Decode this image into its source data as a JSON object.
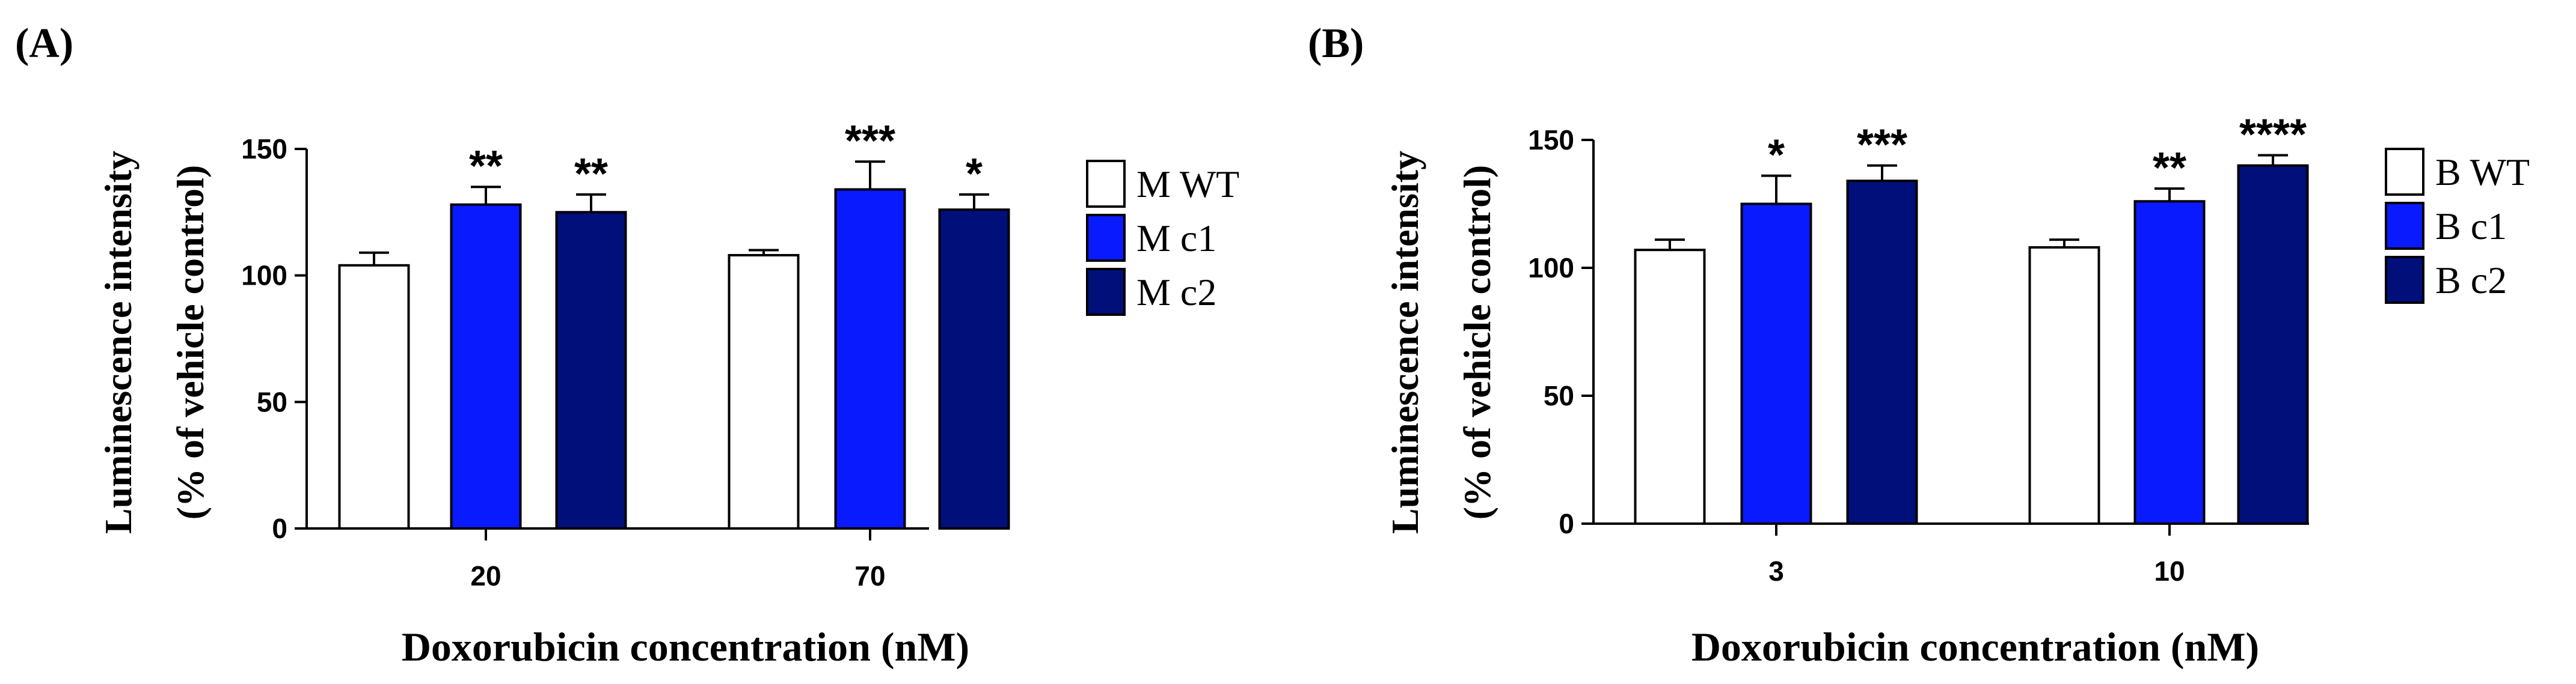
{
  "chart_data": [
    {
      "panel_label": "(A)",
      "type": "bar",
      "categories": [
        "20",
        "70"
      ],
      "series": [
        {
          "name": "M WT",
          "color": "#ffffff",
          "values": [
            104,
            108
          ],
          "errors": [
            5,
            2
          ],
          "significance": [
            "",
            ""
          ]
        },
        {
          "name": "M c1",
          "color": "#0a1aff",
          "values": [
            128,
            134
          ],
          "errors": [
            7,
            11
          ],
          "significance": [
            "**",
            "***"
          ]
        },
        {
          "name": "M c2",
          "color": "#000f7a",
          "values": [
            125,
            126
          ],
          "errors": [
            7,
            6
          ],
          "significance": [
            "**",
            "*"
          ]
        }
      ],
      "ylim": [
        0,
        150
      ],
      "yticks": [
        0,
        50,
        100,
        150
      ],
      "ylabel_line1": "Luminescence intensity",
      "ylabel_line2": "(% of vehicle control)",
      "xlabel": "Doxorubicin concentration (nM)",
      "legend_position": "right"
    },
    {
      "panel_label": "(B)",
      "type": "bar",
      "categories": [
        "3",
        "10"
      ],
      "series": [
        {
          "name": "B WT",
          "color": "#ffffff",
          "values": [
            107,
            108
          ],
          "errors": [
            4,
            3
          ],
          "significance": [
            "",
            ""
          ]
        },
        {
          "name": "B c1",
          "color": "#0a1aff",
          "values": [
            125,
            126
          ],
          "errors": [
            11,
            5
          ],
          "significance": [
            "*",
            "**"
          ]
        },
        {
          "name": "B c2",
          "color": "#000f7a",
          "values": [
            134,
            140
          ],
          "errors": [
            6,
            4
          ],
          "significance": [
            "***",
            "****"
          ]
        }
      ],
      "ylim": [
        0,
        150
      ],
      "yticks": [
        0,
        50,
        100,
        150
      ],
      "ylabel_line1": "Luminescence intensity",
      "ylabel_line2": "(% of vehicle control)",
      "xlabel": "Doxorubicin concentration (nM)",
      "legend_position": "right"
    }
  ]
}
